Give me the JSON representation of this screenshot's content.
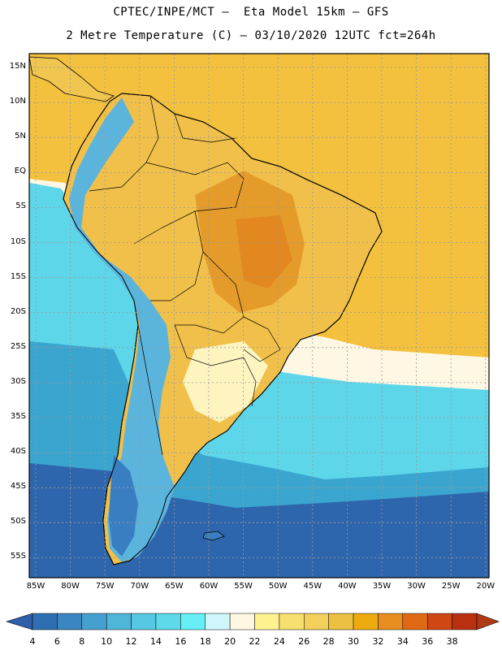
{
  "header": {
    "line1": "CPTEC/INPE/MCT –  Eta Model 15km – GFS",
    "line2": "2 Metre Temperature (C) – 03/10/2020 12UTC fct=264h"
  },
  "map": {
    "lat_labels": [
      "15N",
      "10N",
      "5N",
      "EQ",
      "5S",
      "10S",
      "15S",
      "20S",
      "25S",
      "30S",
      "35S",
      "40S",
      "45S",
      "50S",
      "55S"
    ],
    "lon_labels": [
      "85W",
      "80W",
      "75W",
      "70W",
      "65W",
      "60W",
      "55W",
      "50W",
      "45W",
      "40W",
      "35W",
      "30W",
      "25W",
      "20W"
    ]
  },
  "colorbar": {
    "ticks": [
      "4",
      "6",
      "8",
      "10",
      "12",
      "14",
      "16",
      "18",
      "20",
      "22",
      "24",
      "26",
      "28",
      "30",
      "32",
      "34",
      "36",
      "38"
    ],
    "colors": [
      "#2d6fb0",
      "#3b86c0",
      "#46a0cf",
      "#4fb6da",
      "#57c8e3",
      "#5ed9ea",
      "#66f0f5",
      "#cff6fb",
      "#fdf7e4",
      "#fef28f",
      "#f7e070",
      "#f2d05a",
      "#ecc040",
      "#eeab10",
      "#e88d20",
      "#e06a14",
      "#cf4712",
      "#b83010"
    ],
    "low_color": "#2e5fa8",
    "high_color": "#b03a14"
  },
  "legend_colors": {
    "ocean_warm": "#f6cf5a",
    "ocean_mid": "#5dd6ea",
    "ocean_cool": "#3aa6d0",
    "ocean_cold": "#2e66ad",
    "land_hot": "#e59b2a",
    "land_warm": "#f1c04a",
    "andes": "#5bb4dc",
    "patagonia": "#3a7ec2"
  }
}
